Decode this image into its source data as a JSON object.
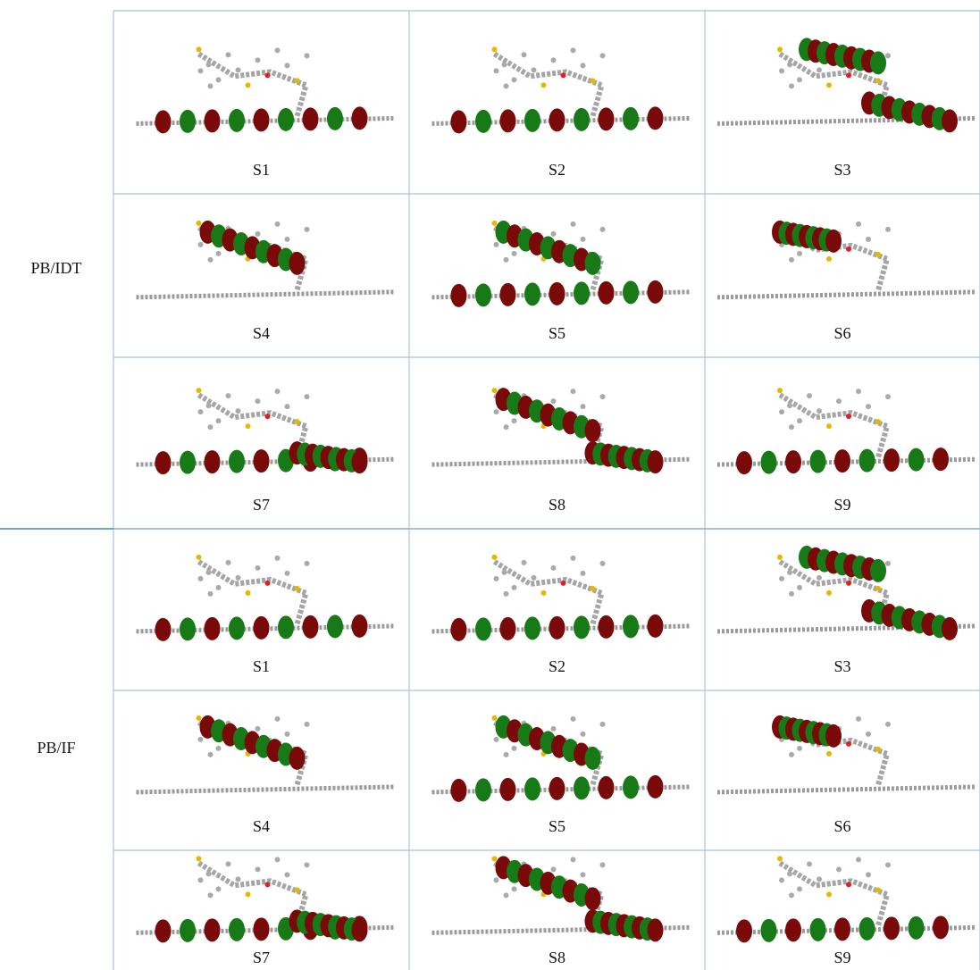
{
  "groups": [
    {
      "label": "PB/IDT",
      "cells": [
        "S1",
        "S2",
        "S3",
        "S4",
        "S5",
        "S6",
        "S7",
        "S8",
        "S9"
      ]
    },
    {
      "label": "PB/IF",
      "cells": [
        "S1",
        "S2",
        "S3",
        "S4",
        "S5",
        "S6",
        "S7",
        "S8",
        "S9"
      ]
    }
  ]
}
